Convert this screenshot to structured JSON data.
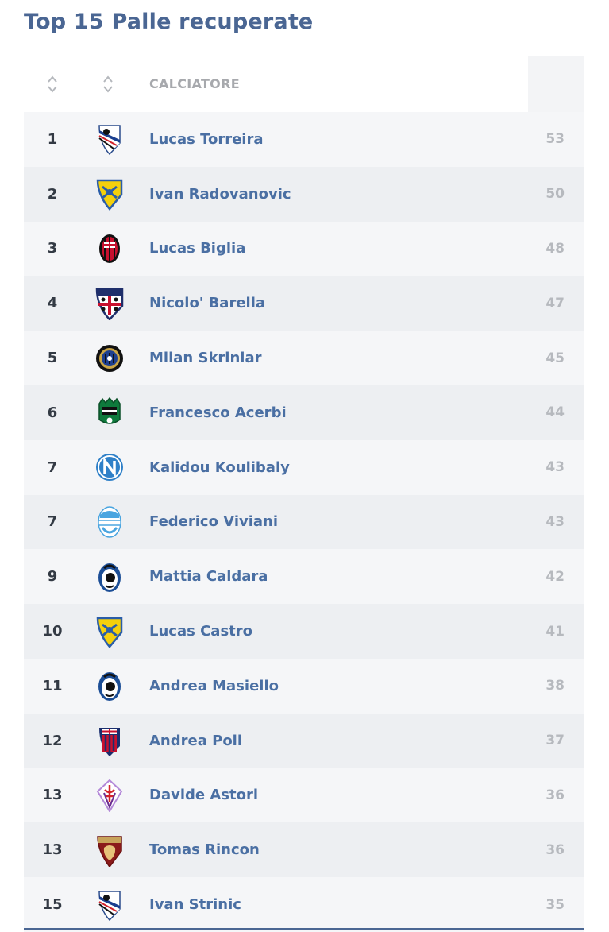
{
  "title": "Top 15 Palle recuperate",
  "table": {
    "header": {
      "player_column": "CALCIATORE"
    },
    "rows": [
      {
        "rank": "1",
        "player": "Lucas Torreira",
        "value": "53",
        "crest": "sampdoria-crest-icon"
      },
      {
        "rank": "2",
        "player": "Ivan Radovanovic",
        "value": "50",
        "crest": "chievo-crest-icon"
      },
      {
        "rank": "3",
        "player": "Lucas Biglia",
        "value": "48",
        "crest": "milan-crest-icon"
      },
      {
        "rank": "4",
        "player": "Nicolo' Barella",
        "value": "47",
        "crest": "cagliari-crest-icon"
      },
      {
        "rank": "5",
        "player": "Milan Skriniar",
        "value": "45",
        "crest": "inter-crest-icon"
      },
      {
        "rank": "6",
        "player": "Francesco Acerbi",
        "value": "44",
        "crest": "sassuolo-crest-icon"
      },
      {
        "rank": "7",
        "player": "Kalidou Koulibaly",
        "value": "43",
        "crest": "napoli-crest-icon"
      },
      {
        "rank": "7",
        "player": "Federico Viviani",
        "value": "43",
        "crest": "spal-crest-icon"
      },
      {
        "rank": "9",
        "player": "Mattia Caldara",
        "value": "42",
        "crest": "atalanta-crest-icon"
      },
      {
        "rank": "10",
        "player": "Lucas Castro",
        "value": "41",
        "crest": "chievo-crest-icon"
      },
      {
        "rank": "11",
        "player": "Andrea Masiello",
        "value": "38",
        "crest": "atalanta-crest-icon"
      },
      {
        "rank": "12",
        "player": "Andrea Poli",
        "value": "37",
        "crest": "bologna-crest-icon"
      },
      {
        "rank": "13",
        "player": "Davide Astori",
        "value": "36",
        "crest": "fiorentina-crest-icon"
      },
      {
        "rank": "13",
        "player": "Tomas Rincon",
        "value": "36",
        "crest": "torino-crest-icon"
      },
      {
        "rank": "15",
        "player": "Ivan Strinic",
        "value": "35",
        "crest": "sampdoria-crest-icon"
      }
    ]
  }
}
